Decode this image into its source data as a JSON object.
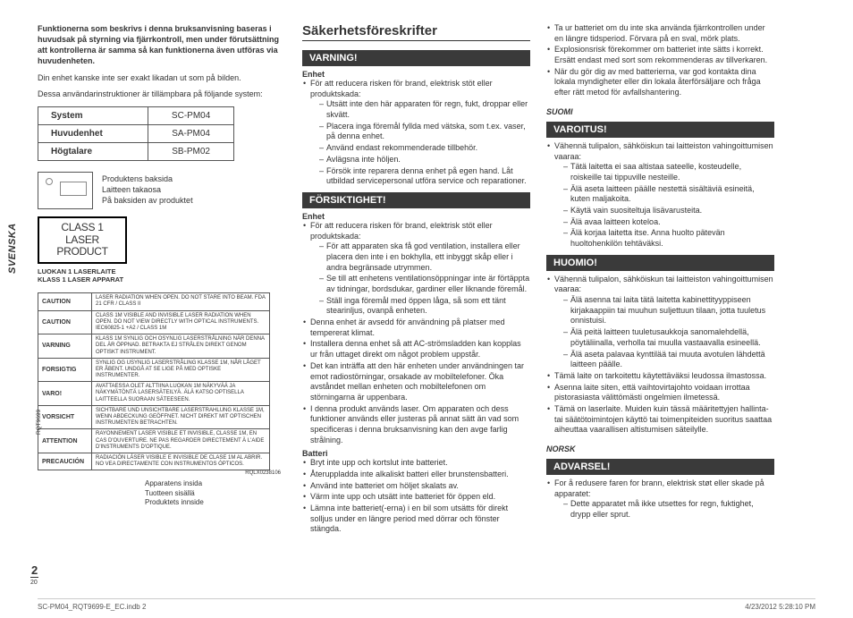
{
  "side_tab": "SVENSKA",
  "intro_bold": "Funktionerna som beskrivs i denna bruksanvisning baseras i huvudsak på styrning via fjärrkontroll, men under förutsättning att kontrollerna är samma så kan funktionerna även utföras via huvudenheten.",
  "intro_p1": "Din enhet kanske inte ser exakt likadan ut som på bilden.",
  "intro_p2": "Dessa användarinstruktioner är tillämpbara på följande system:",
  "table": {
    "rows": [
      [
        "System",
        "SC-PM04"
      ],
      [
        "Huvudenhet",
        "SA-PM04"
      ],
      [
        "Högtalare",
        "SB-PM02"
      ]
    ]
  },
  "product_back": {
    "l1": "Produktens baksida",
    "l2": "Laitteen takaosa",
    "l3": "På baksiden av produktet"
  },
  "laser_badge": {
    "l1": "CLASS 1",
    "l2": "LASER PRODUCT"
  },
  "laser_sub": {
    "l1": "LUOKAN 1 LASERLAITE",
    "l2": "KLASS 1 LASER APPARAT"
  },
  "caution_rows": [
    {
      "label": "CAUTION",
      "text": "LASER RADIATION WHEN OPEN. DO NOT STARE INTO BEAM.",
      "right": "FDA 21 CFR / Class II"
    },
    {
      "label": "CAUTION",
      "text": "CLASS 1M VISIBLE AND INVISIBLE LASER RADIATION WHEN OPEN. DO NOT VIEW DIRECTLY WITH OPTICAL INSTRUMENTS.  IEC60825-1 +A2 / Class 1M"
    },
    {
      "label": "VARNING",
      "text": "KLASS 1M SYNLIG OCH OSYNLIG LASERSTRÅLNING NÄR DENNA DEL ÄR ÖPPNAD. BETRAKTA EJ STRÅLEN DIREKT GENOM OPTISKT INSTRUMENT."
    },
    {
      "label": "FORSIGTIG",
      "text": "SYNLIG OG USYNLIG LASERSTRÅLING KLASSE 1M, NÅR LÅGET ER ÅBENT. UNDGÅ AT SE LIGE PÅ MED OPTISKE INSTRUMENTER."
    },
    {
      "label": "VARO!",
      "text": "AVATTAESSA OLET ALTTIINA LUOKAN 1M NÄKYVÄÄ JA NÄKYMÄTÖNTÄ LASERSÄTEILYÄ. ÄLÄ KATSO OPTISELLA LAITTEELLA SUORAAN SÄTEESEEN."
    },
    {
      "label": "VORSICHT",
      "text": "SICHTBARE UND UNSICHTBARE LASERSTRAHLUNG KLASSE 1M, WENN ABDECKUNG GEÖFFNET. NICHT DIREKT MIT OPTISCHEN INSTRUMENTEN BETRACHTEN."
    },
    {
      "label": "ATTENTION",
      "text": "RAYONNEMENT LASER VISIBLE ET INVISIBLE, CLASSE 1M, EN CAS D'OUVERTURE. NE PAS REGARDER DIRECTEMENT À L'AIDE D'INSTRUMENTS D'OPTIQUE."
    },
    {
      "label": "PRECAUCIÓN",
      "text": "RADIACIÓN LÁSER VISIBLE E INVISIBLE DE CLASE 1M AL ABRIR. NO VEA DIRECTAMENTE CON INSTRUMENTOS ÓPTICOS."
    }
  ],
  "caution_code": "RQLX0238106",
  "inside": {
    "l1": "Apparatens insida",
    "l2": "Tuotteen sisällä",
    "l3": "Produktets innside"
  },
  "rot_code": "RQT9699",
  "page_big": "2",
  "page_small": "20",
  "col2": {
    "title": "Säkerhetsföreskrifter",
    "warn_hdr": "VARNING!",
    "enhet": "Enhet",
    "warn_intro": "För att reducera risken för brand, elektrisk stöt eller produktskada:",
    "warn_items": [
      "Utsätt inte den här apparaten för regn, fukt, droppar eller skvätt.",
      "Placera inga föremål fyllda med vätska, som t.ex. vaser, på denna enhet.",
      "Använd endast rekommenderade tillbehör.",
      "Avlägsna inte höljen.",
      "Försök inte reparera denna enhet på egen hand. Låt utbildad servicepersonal utföra service och reparationer."
    ],
    "care_hdr": "FÖRSIKTIGHET!",
    "care_intro": "För att reducera risken för brand, elektrisk stöt eller produktskada:",
    "care_items": [
      "För att apparaten ska få god ventilation, installera eller placera den inte i en bokhylla, ett inbyggt skåp eller i andra begränsade utrymmen.",
      "Se till att enhetens ventilationsöppningar inte är förtäppta av tidningar, bordsdukar, gardiner eller liknande föremål.",
      "Ställ inga föremål med öppen låga, så som ett tänt stearinljus, ovanpå enheten."
    ],
    "care_bul2": [
      "Denna enhet är avsedd för användning på platser med tempererat klimat.",
      "Installera denna enhet så att AC-strömsladden kan kopplas ur från uttaget direkt om något problem uppstår.",
      "Det kan inträffa att den här enheten under användningen tar emot radiostörningar, orsakade av mobiltelefoner. Öka avståndet mellan enheten och mobiltelefonen om störningarna är uppenbara.",
      "I denna produkt används laser. Om apparaten och dess funktioner används eller justeras på annat sätt än vad som specificeras i denna bruksanvisning kan den avge farlig strålning."
    ],
    "batt_hdr": "Batteri",
    "batt_items": [
      "Bryt inte upp och kortslut inte batteriet.",
      "Återuppladda inte alkaliskt batteri eller brunstensbatteri.",
      "Använd inte batteriet om höljet skalats av.",
      "Värm inte upp och utsätt inte batteriet för öppen eld.",
      "Lämna inte batteriet(-erna) i en bil som utsätts för direkt solljus under en längre period med dörrar och fönster stängda."
    ]
  },
  "col3": {
    "cont_items": [
      "Ta ur batteriet om du inte ska använda fjärrkontrollen under en längre tidsperiod. Förvara på en sval, mörk plats.",
      "Explosionsrisk förekommer om batteriet inte sätts i korrekt. Ersätt endast med sort som rekommenderas av tillverkaren.",
      "När du gör dig av med batterierna, var god kontakta dina lokala myndigheter eller din lokala återförsäljare och fråga efter rätt metod för avfallshantering."
    ],
    "suomi": "SUOMI",
    "var_hdr": "VAROITUS!",
    "var_intro": "Vähennä tulipalon, sähköiskun tai laitteiston vahingoittumisen vaaraa:",
    "var_items": [
      "Tätä laitetta ei saa altistaa sateelle, kosteudelle, roiskeille tai tippuville nesteille.",
      "Älä aseta laitteen päälle nestettä sisältäviä esineitä, kuten maljakoita.",
      "Käytä vain suositeltuja lisävarusteita.",
      "Älä avaa laitteen koteloa.",
      "Älä korjaa laitetta itse. Anna huolto pätevän huoltohenkilön tehtäväksi."
    ],
    "huo_hdr": "HUOMIO!",
    "huo_intro": "Vähennä tulipalon, sähköiskun tai laitteiston vahingoittumisen vaaraa:",
    "huo_items": [
      "Älä asenna tai laita tätä laitetta kabinettityyppiseen kirjakaappiin tai muuhun suljettuun tilaan, jotta tuuletus onnistuisi.",
      "Älä peitä laitteen tuuletusaukkoja sanomalehdellä, pöytäliinalla, verholla tai muulla vastaavalla esineellä.",
      "Älä aseta palavaa kynttilää tai muuta avotulen lähdettä laitteen päälle."
    ],
    "huo_bul2": [
      "Tämä laite on tarkoitettu käytettäväksi leudossa ilmastossa.",
      "Asenna laite siten, että vaihtovirtajohto voidaan irrottaa pistorasiasta välittömästi ongelmien ilmetessä.",
      "Tämä on laserlaite. Muiden kuin tässä määritettyjen hallinta- tai säätötoimintojen käyttö tai toimenpiteiden suoritus saattaa aiheuttaa vaarallisen altistumisen säteilylle."
    ],
    "norsk": "NORSK",
    "adv_hdr": "ADVARSEL!",
    "adv_intro": "For å redusere faren for brann, elektrisk støt eller skade på apparatet:",
    "adv_items": [
      "Dette apparatet må ikke utsettes for regn, fuktighet, drypp eller sprut."
    ]
  },
  "footer": {
    "left": "SC-PM04_RQT9699-E_EC.indb   2",
    "right": "4/23/2012   5:28:10 PM"
  }
}
